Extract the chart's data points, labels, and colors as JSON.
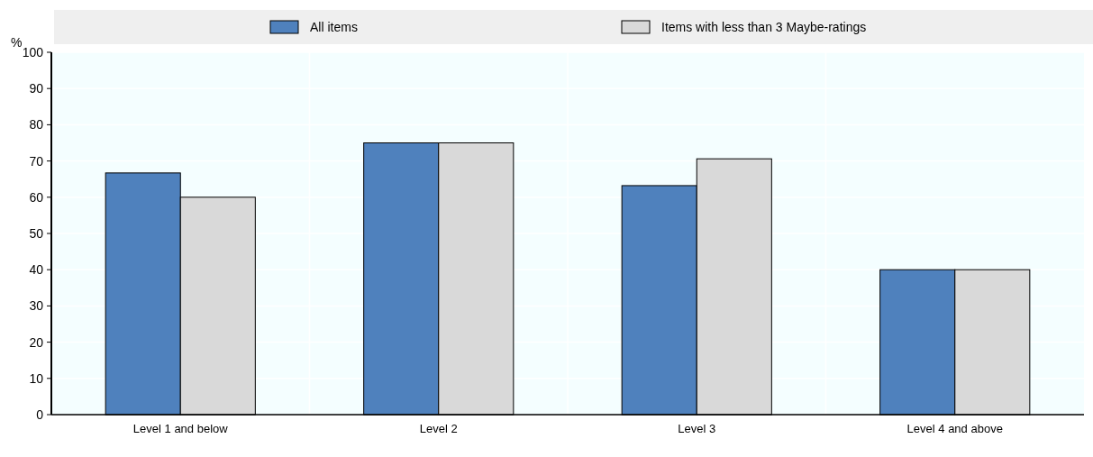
{
  "chart_data": {
    "type": "bar",
    "ylabel": "%",
    "categories": [
      "Level 1 and below",
      "Level 2",
      "Level 3",
      "Level 4 and above"
    ],
    "series": [
      {
        "name": "All items",
        "color": "#4f81bd",
        "values": [
          66.7,
          75,
          63.2,
          40
        ]
      },
      {
        "name": "Items with less than 3 Maybe-ratings",
        "color": "#d9d9d9",
        "values": [
          60,
          75,
          70.6,
          40
        ]
      }
    ],
    "ylim": [
      0,
      100
    ],
    "yticks": [
      0,
      10,
      20,
      30,
      40,
      50,
      60,
      70,
      80,
      90,
      100
    ],
    "grid": true,
    "legend": "top"
  }
}
